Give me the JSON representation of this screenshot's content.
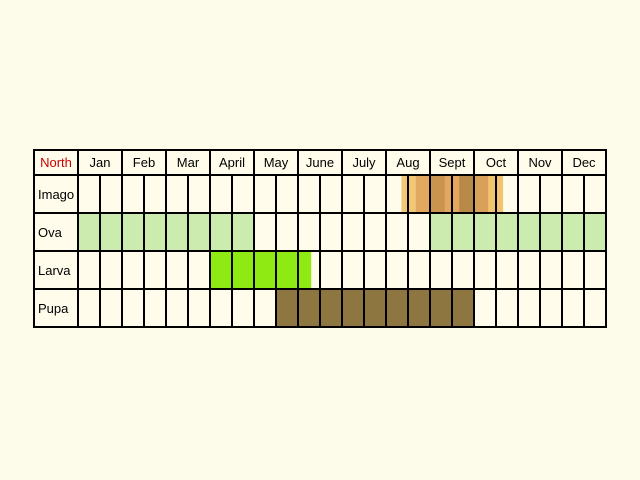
{
  "region_label": "North",
  "months": [
    "Jan",
    "Feb",
    "Mar",
    "April",
    "May",
    "June",
    "July",
    "Aug",
    "Sept",
    "Oct",
    "Nov",
    "Dec"
  ],
  "chart_data": {
    "type": "table",
    "title": "",
    "columns_per_month": 2,
    "stages": [
      {
        "label": "Imago",
        "periods": [
          {
            "start": "early Aug",
            "end": "mid Oct",
            "color": "#f2c878",
            "stripes": [
              "#f2c878",
              "#e2a860",
              "#c8944e",
              "#e2a860",
              "#b88a48",
              "#d8a058",
              "#f0c470"
            ]
          }
        ]
      },
      {
        "label": "Ova",
        "periods": [
          {
            "start": "Jan",
            "end": "April",
            "color": "#cbecae"
          },
          {
            "start": "Sept",
            "end": "Dec",
            "color": "#cbecae"
          }
        ]
      },
      {
        "label": "Larva",
        "periods": [
          {
            "start": "April",
            "end": "early June",
            "color": "#8eea12"
          }
        ]
      },
      {
        "label": "Pupa",
        "periods": [
          {
            "start": "mid May",
            "end": "Sept",
            "color": "#8e7641"
          }
        ]
      }
    ]
  },
  "colors": {
    "background": "#fdfbe9",
    "cell": "#fffcec",
    "grid": "#000000",
    "region_label": "#cc0000"
  }
}
